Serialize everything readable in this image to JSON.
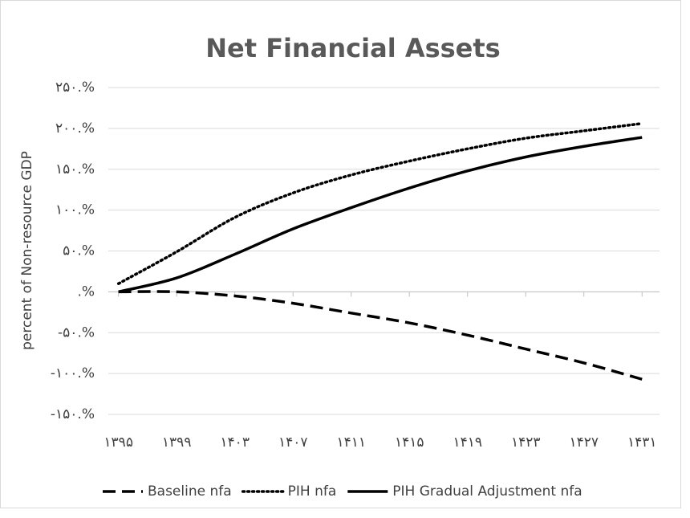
{
  "chart_data": {
    "type": "line",
    "title": "Net Financial Assets",
    "y_label": "percent of Non-resource GDP",
    "x": [
      1395,
      1399,
      1403,
      1407,
      1411,
      1415,
      1419,
      1423,
      1427,
      1431
    ],
    "xlim": [
      1394.3,
      1432.2
    ],
    "xticks": [
      {
        "value": 1395,
        "label": "۱۳۹۵"
      },
      {
        "value": 1399,
        "label": "۱۳۹۹"
      },
      {
        "value": 1403,
        "label": "۱۴۰۳"
      },
      {
        "value": 1407,
        "label": "۱۴۰۷"
      },
      {
        "value": 1411,
        "label": "۱۴۱۱"
      },
      {
        "value": 1415,
        "label": "۱۴۱۵"
      },
      {
        "value": 1419,
        "label": "۱۴۱۹"
      },
      {
        "value": 1423,
        "label": "۱۴۲۳"
      },
      {
        "value": 1427,
        "label": "۱۴۲۷"
      },
      {
        "value": 1431,
        "label": "۱۴۳۱"
      }
    ],
    "ylim": [
      -150,
      250
    ],
    "yticks": [
      {
        "value": -150,
        "label": "-۱۵۰.%"
      },
      {
        "value": -100,
        "label": "-۱۰۰.%"
      },
      {
        "value": -50,
        "label": "-۵۰.%"
      },
      {
        "value": 0,
        "label": ".%"
      },
      {
        "value": 50,
        "label": "۵۰.%"
      },
      {
        "value": 100,
        "label": "۱۰۰.%"
      },
      {
        "value": 150,
        "label": "۱۵۰.%"
      },
      {
        "value": 200,
        "label": "۲۰۰.%"
      },
      {
        "value": 250,
        "label": "۲۵۰.%"
      }
    ],
    "grid": true,
    "legend": "bottom",
    "series": [
      {
        "name": "Baseline nfa",
        "color": "#000000",
        "dash": "dashed",
        "values": [
          0,
          0,
          -5,
          -14,
          -26,
          -38,
          -53,
          -70,
          -87,
          -107
        ]
      },
      {
        "name": "PIH nfa",
        "color": "#000000",
        "dash": "dotted",
        "values": [
          10,
          49,
          91,
          121,
          143,
          160,
          175,
          188,
          197,
          206
        ]
      },
      {
        "name": "PIH Gradual Adjustment nfa",
        "color": "#000000",
        "dash": "solid",
        "values": [
          0,
          17,
          46,
          77,
          103,
          127,
          148,
          165,
          178,
          189
        ]
      }
    ]
  }
}
